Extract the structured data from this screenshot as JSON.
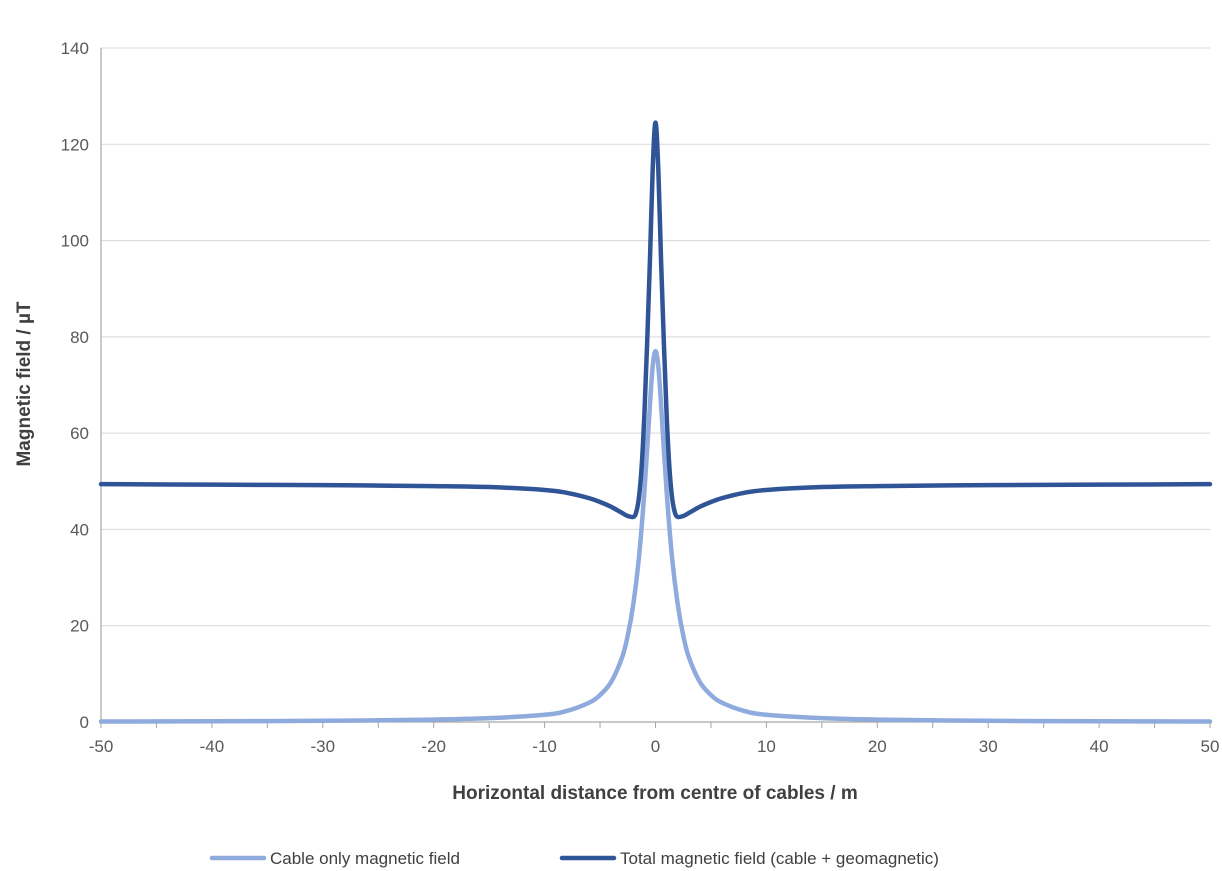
{
  "chart_data": {
    "type": "line",
    "title": "",
    "xlabel": "Horizontal distance from centre of cables / m",
    "ylabel": "Magnetic field / µT",
    "xlim": [
      -50,
      50
    ],
    "ylim": [
      0,
      140
    ],
    "x_ticks": [
      -50,
      -40,
      -30,
      -20,
      -10,
      0,
      10,
      20,
      30,
      40,
      50
    ],
    "y_ticks": [
      0,
      20,
      40,
      60,
      80,
      100,
      120,
      140
    ],
    "x_tick_labels": [
      "-50",
      "-40",
      "-30",
      "-20",
      "-10",
      "0",
      "10",
      "20",
      "30",
      "40",
      "50"
    ],
    "y_tick_labels": [
      "0",
      "20",
      "40",
      "60",
      "80",
      "100",
      "120",
      "140"
    ],
    "grid": "horizontal",
    "legend_position": "bottom",
    "series": [
      {
        "name": "Cable only magnetic field",
        "color": "#8faadc",
        "points": [
          [
            -50,
            0.1
          ],
          [
            -40,
            0.15
          ],
          [
            -30,
            0.25
          ],
          [
            -20,
            0.5
          ],
          [
            -15,
            0.8
          ],
          [
            -10,
            1.5
          ],
          [
            -8,
            2.3
          ],
          [
            -6,
            4.0
          ],
          [
            -5,
            5.6
          ],
          [
            -4,
            8.3
          ],
          [
            -3,
            13.5
          ],
          [
            -2.5,
            18.0
          ],
          [
            -2,
            24.5
          ],
          [
            -1.5,
            34.0
          ],
          [
            -1,
            48.0
          ],
          [
            -0.5,
            66.0
          ],
          [
            -0.25,
            74.0
          ],
          [
            0,
            77.0
          ],
          [
            0.25,
            74.0
          ],
          [
            0.5,
            66.0
          ],
          [
            1,
            48.0
          ],
          [
            1.5,
            34.0
          ],
          [
            2,
            24.5
          ],
          [
            2.5,
            18.0
          ],
          [
            3,
            13.5
          ],
          [
            4,
            8.3
          ],
          [
            5,
            5.6
          ],
          [
            6,
            4.0
          ],
          [
            8,
            2.3
          ],
          [
            10,
            1.5
          ],
          [
            15,
            0.8
          ],
          [
            20,
            0.5
          ],
          [
            30,
            0.25
          ],
          [
            40,
            0.15
          ],
          [
            50,
            0.1
          ]
        ]
      },
      {
        "name": "Total magnetic field (cable + geomagnetic)",
        "color": "#2f5597",
        "points": [
          [
            -50,
            49.4
          ],
          [
            -40,
            49.3
          ],
          [
            -30,
            49.2
          ],
          [
            -20,
            49.0
          ],
          [
            -15,
            48.8
          ],
          [
            -10,
            48.2
          ],
          [
            -8,
            47.6
          ],
          [
            -6,
            46.5
          ],
          [
            -5,
            45.7
          ],
          [
            -4,
            44.7
          ],
          [
            -3,
            43.4
          ],
          [
            -2.5,
            42.8
          ],
          [
            -2,
            42.6
          ],
          [
            -1.75,
            43.5
          ],
          [
            -1.5,
            46.5
          ],
          [
            -1.25,
            53.0
          ],
          [
            -1,
            64.0
          ],
          [
            -0.75,
            79.0
          ],
          [
            -0.5,
            96.0
          ],
          [
            -0.25,
            115.0
          ],
          [
            0,
            124.5
          ],
          [
            0.25,
            115.0
          ],
          [
            0.5,
            96.0
          ],
          [
            0.75,
            79.0
          ],
          [
            1,
            64.0
          ],
          [
            1.25,
            53.0
          ],
          [
            1.5,
            46.5
          ],
          [
            1.75,
            43.5
          ],
          [
            2,
            42.6
          ],
          [
            2.5,
            42.8
          ],
          [
            3,
            43.4
          ],
          [
            4,
            44.7
          ],
          [
            5,
            45.7
          ],
          [
            6,
            46.5
          ],
          [
            8,
            47.6
          ],
          [
            10,
            48.2
          ],
          [
            15,
            48.8
          ],
          [
            20,
            49.0
          ],
          [
            30,
            49.2
          ],
          [
            40,
            49.3
          ],
          [
            50,
            49.4
          ]
        ]
      }
    ]
  }
}
